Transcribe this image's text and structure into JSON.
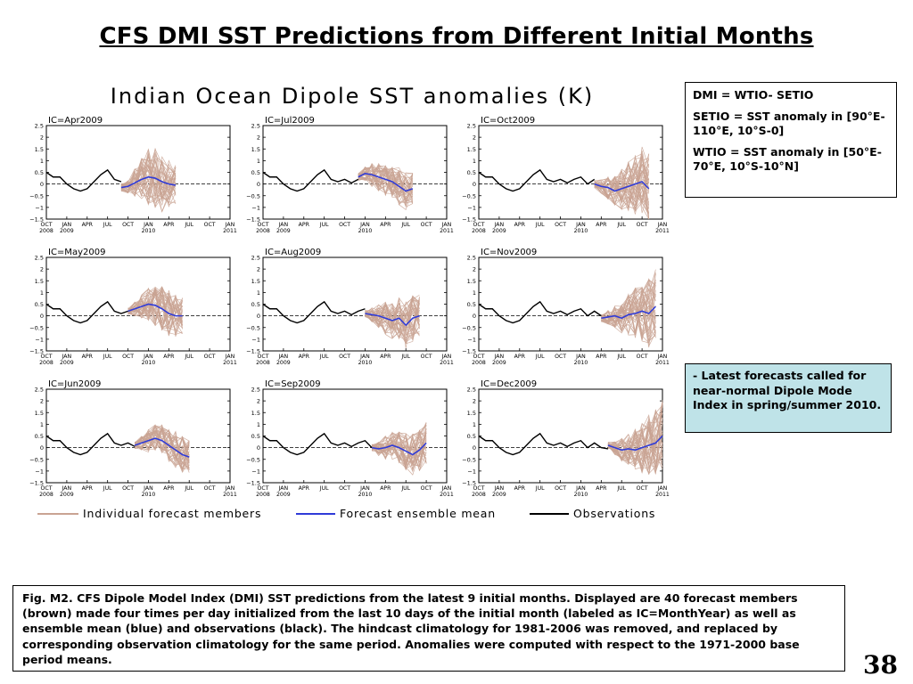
{
  "slide": {
    "title": "CFS DMI SST Predictions from Different Initial Months",
    "page_number": "38"
  },
  "definitions": {
    "line1": "DMI = WTIO- SETIO",
    "line2": "SETIO = SST anomaly in [90°E-110°E, 10°S-0]",
    "line3": "WTIO = SST anomaly in [50°E-70°E, 10°S-10°N]"
  },
  "note": {
    "text": "- Latest forecasts called for near-normal Dipole Mode Index in spring/summer 2010."
  },
  "caption": {
    "text": "Fig. M2. CFS Dipole Model Index (DMI) SST predictions from the latest 9 initial months. Displayed are 40 forecast members (brown) made four times per day initialized from the last 10 days of the initial month (labeled as IC=MonthYear) as well as ensemble mean (blue) and observations (black). The hindcast climatology for 1981-2006 was removed, and replaced by corresponding observation climatology for the same period. Anomalies were computed with respect to the 1971-2000 base period means."
  },
  "colors": {
    "members": "#c9a393",
    "ensemble_mean": "#2f3bd8",
    "observations": "#000000"
  },
  "chart_data": {
    "type": "line",
    "title": "Indian Ocean Dipole SST anomalies (K)",
    "ylim": [
      -1.5,
      2.5
    ],
    "y_ticks": [
      "2.5",
      "2",
      "1.5",
      "1",
      "0.5",
      "0",
      "−0.5",
      "−1",
      "−1.5"
    ],
    "x_tick_labels": [
      "OCT",
      "JAN",
      "APR",
      "JUL",
      "OCT",
      "JAN",
      "APR",
      "JUL",
      "OCT",
      "JAN"
    ],
    "x_year_labels": [
      {
        "tick": 0,
        "label": "2008"
      },
      {
        "tick": 1,
        "label": "2009"
      },
      {
        "tick": 5,
        "label": "2010"
      },
      {
        "tick": 9,
        "label": "2011"
      }
    ],
    "legend": {
      "position": "bottom",
      "members": "Individual forecast members",
      "ensemble_mean": "Forecast ensemble mean",
      "observations": "Observations"
    },
    "observations": {
      "x": [
        0,
        1,
        2,
        3,
        4,
        5,
        6,
        7,
        8,
        9,
        10,
        11,
        12,
        13,
        14,
        15,
        16,
        17,
        18,
        19,
        20,
        21,
        22,
        23,
        24,
        25,
        26,
        27
      ],
      "y": [
        0.5,
        0.3,
        0.3,
        0.0,
        -0.2,
        -0.3,
        -0.2,
        0.1,
        0.4,
        0.6,
        0.2,
        0.1,
        0.2,
        0.05,
        0.2,
        0.3,
        0.0,
        0.2,
        0.0,
        -0.05,
        0.05,
        0.1,
        0.0,
        0.15,
        0.0,
        0.3,
        0.15,
        0.35
      ]
    },
    "panels": [
      {
        "label": "IC=Apr2009",
        "start": 11,
        "mean": [
          -0.15,
          -0.1,
          0.05,
          0.2,
          0.3,
          0.25,
          0.1,
          0.0,
          -0.05
        ],
        "spread": [
          0.15,
          0.3,
          0.6,
          0.9,
          1.2,
          1.3,
          1.3,
          1.1,
          0.9
        ]
      },
      {
        "label": "IC=Jul2009",
        "start": 14,
        "mean": [
          0.3,
          0.45,
          0.4,
          0.3,
          0.2,
          0.1,
          -0.1,
          -0.3,
          -0.2
        ],
        "spread": [
          0.15,
          0.3,
          0.5,
          0.6,
          0.7,
          0.7,
          0.8,
          0.8,
          0.7
        ]
      },
      {
        "label": "IC=Oct2009",
        "start": 17,
        "mean": [
          0.0,
          -0.1,
          -0.15,
          -0.3,
          -0.2,
          -0.1,
          0.0,
          0.1,
          -0.2
        ],
        "spread": [
          0.15,
          0.3,
          0.5,
          0.7,
          0.9,
          1.1,
          1.3,
          1.5,
          1.6
        ]
      },
      {
        "label": "IC=May2009",
        "start": 12,
        "mean": [
          0.2,
          0.3,
          0.4,
          0.5,
          0.45,
          0.3,
          0.1,
          0.0,
          0.0
        ],
        "spread": [
          0.15,
          0.3,
          0.5,
          0.7,
          0.9,
          1.0,
          1.0,
          0.9,
          0.8
        ]
      },
      {
        "label": "IC=Aug2009",
        "start": 15,
        "mean": [
          0.1,
          0.05,
          0.0,
          -0.1,
          -0.2,
          -0.1,
          -0.4,
          -0.1,
          0.0
        ],
        "spread": [
          0.15,
          0.3,
          0.5,
          0.7,
          0.8,
          0.9,
          1.0,
          1.0,
          0.9
        ]
      },
      {
        "label": "IC=Nov2009",
        "start": 18,
        "mean": [
          -0.1,
          -0.05,
          0.0,
          -0.1,
          0.05,
          0.1,
          0.2,
          0.1,
          0.4
        ],
        "spread": [
          0.15,
          0.3,
          0.5,
          0.7,
          0.9,
          1.1,
          1.3,
          1.5,
          1.6
        ]
      },
      {
        "label": "IC=Jun2009",
        "start": 13,
        "mean": [
          0.1,
          0.2,
          0.3,
          0.4,
          0.3,
          0.1,
          -0.1,
          -0.3,
          -0.4
        ],
        "spread": [
          0.15,
          0.3,
          0.5,
          0.6,
          0.7,
          0.7,
          0.8,
          0.8,
          0.7
        ]
      },
      {
        "label": "IC=Sep2009",
        "start": 16,
        "mean": [
          0.0,
          -0.05,
          0.0,
          0.1,
          0.0,
          -0.15,
          -0.3,
          -0.1,
          0.2
        ],
        "spread": [
          0.15,
          0.3,
          0.5,
          0.6,
          0.7,
          0.8,
          0.9,
          0.9,
          0.9
        ]
      },
      {
        "label": "IC=Dec2009",
        "start": 19,
        "mean": [
          0.1,
          0.0,
          -0.1,
          -0.05,
          -0.1,
          0.0,
          0.1,
          0.2,
          0.5
        ],
        "spread": [
          0.15,
          0.3,
          0.5,
          0.7,
          0.9,
          1.1,
          1.3,
          1.5,
          1.6
        ]
      }
    ]
  }
}
